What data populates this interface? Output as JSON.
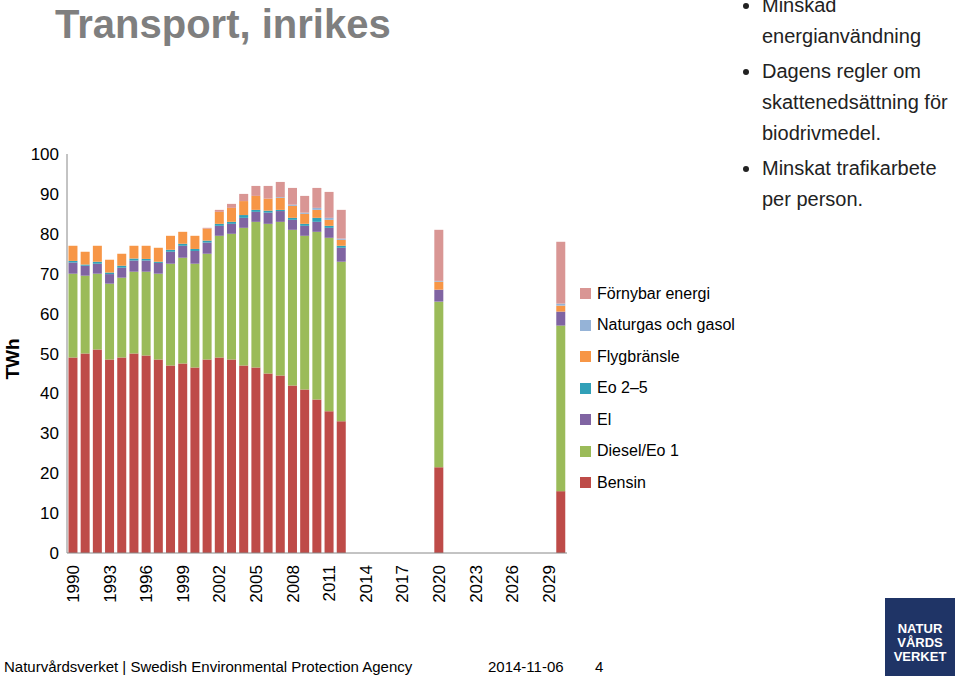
{
  "chart_data": {
    "type": "bar",
    "title": "Transport, inrikes",
    "y_label": "TWh",
    "stacked": true,
    "grid": false,
    "legend": "right",
    "ylim": [
      0,
      100
    ],
    "yticks": [
      0,
      10,
      20,
      30,
      40,
      50,
      60,
      70,
      80,
      90,
      100
    ],
    "categories": [
      "1990",
      null,
      null,
      "1993",
      null,
      null,
      "1996",
      null,
      null,
      "1999",
      null,
      null,
      "2002",
      null,
      null,
      "2005",
      null,
      null,
      "2008",
      null,
      null,
      "2011",
      null,
      null,
      "2014",
      null,
      null,
      "2017",
      null,
      null,
      "2020",
      null,
      null,
      "2023",
      null,
      null,
      "2026",
      null,
      null,
      "2029",
      null
    ],
    "series": [
      {
        "name": "Bensin",
        "color": "#be4b48",
        "values": [
          49,
          50,
          51,
          48.5,
          49,
          50,
          49.5,
          48.5,
          47,
          47.5,
          46.5,
          48.5,
          49,
          48.5,
          47,
          46.5,
          45,
          44.5,
          42,
          41,
          38.5,
          35.5,
          33,
          null,
          null,
          null,
          null,
          null,
          null,
          null,
          21.5,
          null,
          null,
          null,
          null,
          null,
          null,
          null,
          null,
          null,
          15.5
        ]
      },
      {
        "name": "Diesel/Eo 1",
        "color": "#9bbb59",
        "values": [
          21,
          19.5,
          19,
          19,
          20,
          20.5,
          21,
          21.5,
          25.5,
          26.5,
          26,
          26.5,
          30.5,
          31.5,
          34.5,
          36.5,
          37.5,
          38.5,
          39,
          38.5,
          42,
          43.5,
          40,
          null,
          null,
          null,
          null,
          null,
          null,
          null,
          41.5,
          null,
          null,
          null,
          null,
          null,
          null,
          null,
          null,
          null,
          41.5
        ]
      },
      {
        "name": "El",
        "color": "#8064a2",
        "values": [
          2.8,
          2.5,
          2.5,
          2.4,
          2.5,
          2.8,
          2.8,
          2.7,
          3,
          3,
          3.2,
          2.8,
          2.5,
          2.5,
          2.5,
          2.5,
          2.8,
          2.7,
          2.5,
          2.5,
          2.5,
          2.5,
          3.5,
          null,
          null,
          null,
          null,
          null,
          null,
          null,
          3,
          null,
          null,
          null,
          null,
          null,
          null,
          null,
          null,
          null,
          3.5
        ]
      },
      {
        "name": "Eo 2–5",
        "color": "#31a0b8",
        "values": [
          0.4,
          0.3,
          0.5,
          0.4,
          0.5,
          0.5,
          0.4,
          0.3,
          0.5,
          0.5,
          0.5,
          0.5,
          0.5,
          0.5,
          0.7,
          0.5,
          0.5,
          0.3,
          0.5,
          0.5,
          1,
          0.5,
          0.5,
          null,
          null,
          null,
          null,
          null,
          null,
          null,
          0,
          null,
          null,
          null,
          null,
          null,
          null,
          null,
          null,
          null,
          0
        ]
      },
      {
        "name": "Flygbränsle",
        "color": "#f79646",
        "values": [
          3.8,
          3.2,
          4,
          3.2,
          3,
          3.2,
          3.3,
          3.5,
          3.5,
          3,
          3.3,
          3,
          3,
          3.5,
          3.5,
          3.5,
          3,
          3,
          3,
          2.5,
          2,
          1.5,
          1.5,
          null,
          null,
          null,
          null,
          null,
          null,
          null,
          2,
          null,
          null,
          null,
          null,
          null,
          null,
          null,
          null,
          null,
          1.5
        ]
      },
      {
        "name": "Naturgas och gasol",
        "color": "#95b3d7",
        "values": [
          0,
          0,
          0,
          0,
          0,
          0,
          0,
          0,
          0,
          0,
          0,
          0,
          0,
          0,
          0,
          0,
          0,
          0.2,
          0.3,
          0.3,
          0.5,
          0.5,
          0.3,
          null,
          null,
          null,
          null,
          null,
          null,
          null,
          0.2,
          null,
          null,
          null,
          null,
          null,
          null,
          null,
          null,
          null,
          0.5
        ]
      },
      {
        "name": "Förnybar energi",
        "color": "#d99694",
        "values": [
          0,
          0,
          0,
          0,
          0,
          0,
          0,
          0,
          0,
          0,
          0,
          0.2,
          0.5,
          1,
          1.8,
          2.5,
          3.2,
          3.8,
          4.2,
          4.2,
          5,
          6.5,
          7.2,
          null,
          null,
          null,
          null,
          null,
          null,
          null,
          12.8,
          null,
          null,
          null,
          null,
          null,
          null,
          null,
          null,
          null,
          15.5
        ]
      }
    ]
  },
  "slide": {
    "bullets": [
      "Minskad energianvändning",
      "Dagens regler om skattenedsättning för biodrivmedel.",
      "Minskat trafikarbete per person."
    ],
    "footer": {
      "source": "Naturvårdsverket | Swedish Environmental Protection Agency",
      "date": "2014-11-06",
      "page": 4
    },
    "logo": [
      "NATUR",
      "VÅRDS",
      "VERKET"
    ]
  }
}
